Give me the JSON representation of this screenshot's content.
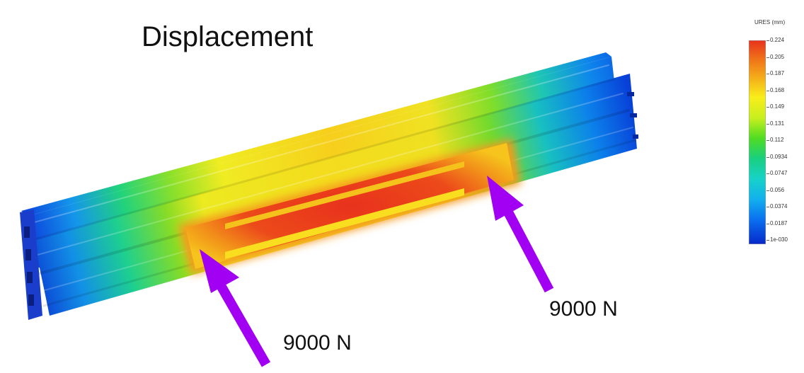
{
  "title": "Displacement",
  "legend": {
    "title": "URES (mm)",
    "ticks": [
      "0.224",
      "0.205",
      "0.187",
      "0.168",
      "0.149",
      "0.131",
      "0.112",
      "0.0934",
      "0.0747",
      "0.056",
      "0.0374",
      "0.0187",
      "1e-030"
    ],
    "colors": [
      "#e8321c",
      "#f07818",
      "#f5b81a",
      "#f8ee1a",
      "#c8ef1e",
      "#70e021",
      "#20d424",
      "#18d080",
      "#17d2c8",
      "#12b0ee",
      "#0a78f0",
      "#0847e0",
      "#0628c8"
    ]
  },
  "forces": [
    {
      "label": "9000 N"
    },
    {
      "label": "9000 N"
    }
  ],
  "arrow_color": "#a100f2"
}
